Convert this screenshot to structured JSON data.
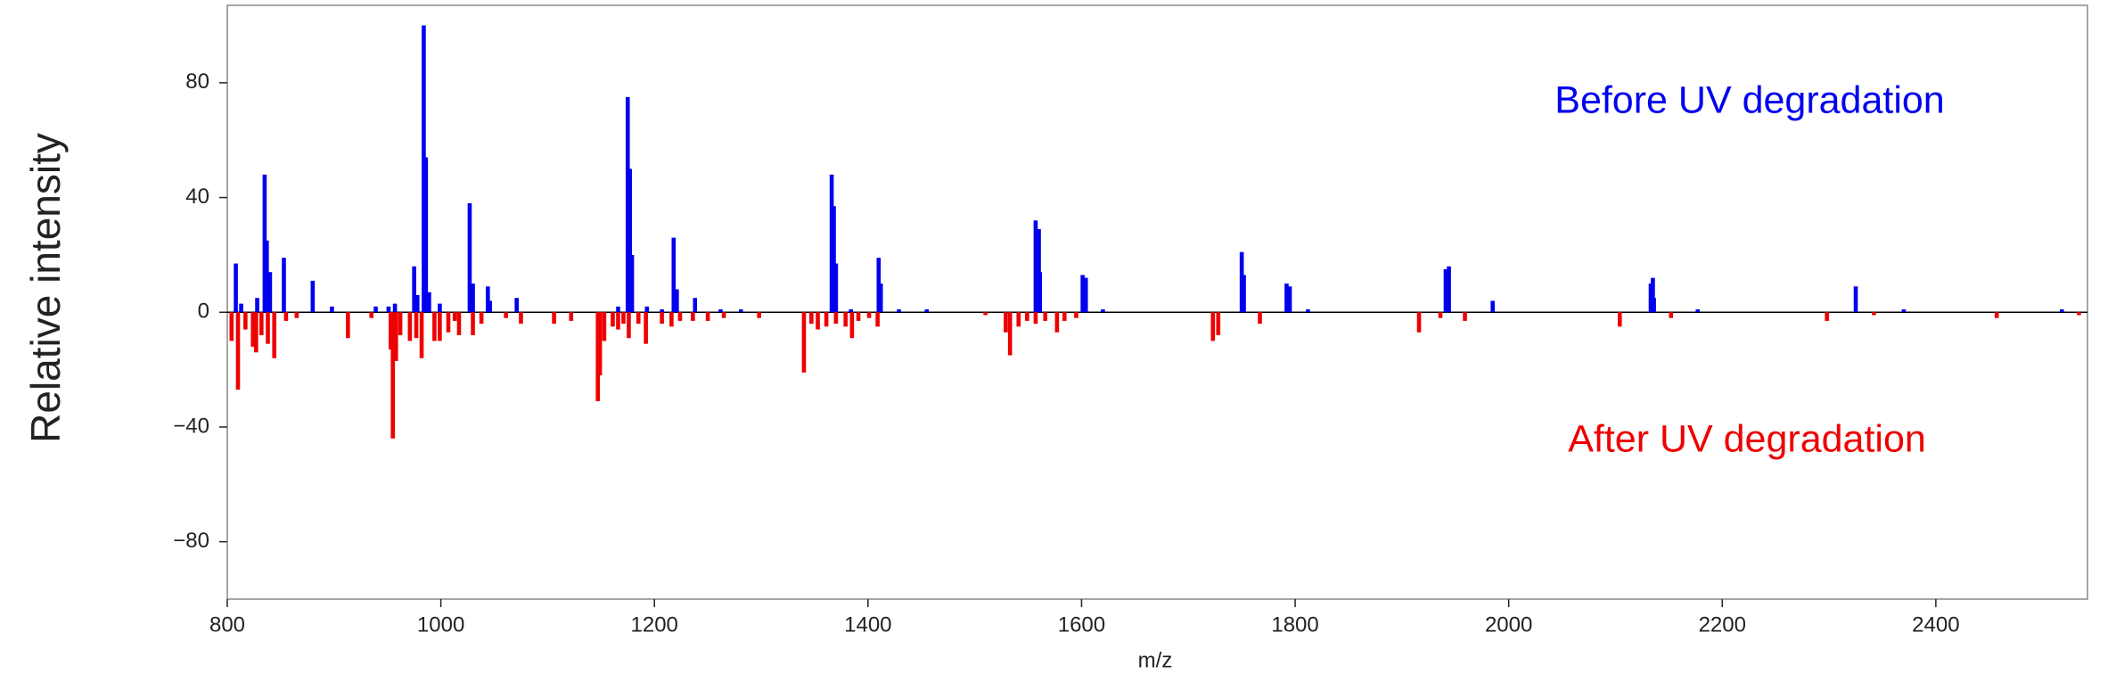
{
  "chart_data": {
    "type": "mirror-stick",
    "xlabel": "m/z",
    "ylabel": "Relative intensity",
    "xlim": [
      800,
      2542
    ],
    "ylim": [
      -100,
      107
    ],
    "xticks": [
      800,
      1000,
      1200,
      1400,
      1600,
      1800,
      2000,
      2200,
      2400
    ],
    "yticks": [
      {
        "value": -80,
        "label": "−80"
      },
      {
        "value": -40,
        "label": "−40"
      },
      0,
      40,
      80
    ],
    "series": [
      {
        "name": "Before UV degradation",
        "color": "#0000ee",
        "x": [
          808,
          813,
          828,
          835,
          837,
          840,
          853,
          880,
          898,
          939,
          951,
          957,
          975,
          978,
          984,
          986,
          989,
          999,
          1027,
          1030,
          1044,
          1046,
          1071,
          1166,
          1175,
          1177,
          1179,
          1193,
          1207,
          1218,
          1221,
          1238,
          1262,
          1281,
          1366,
          1368,
          1370,
          1384,
          1410,
          1412,
          1429,
          1455,
          1557,
          1560,
          1561,
          1601,
          1604,
          1620,
          1750,
          1752,
          1792,
          1795,
          1812,
          1941,
          1944,
          1985,
          2133,
          2135,
          2136,
          2177,
          2325,
          2370,
          2518
        ],
        "values": [
          17,
          3,
          5,
          48,
          25,
          14,
          19,
          11,
          2,
          2,
          2,
          3,
          16,
          6,
          100,
          54,
          7,
          3,
          38,
          10,
          9,
          4,
          5,
          2,
          75,
          50,
          20,
          2,
          1,
          26,
          8,
          5,
          1,
          1,
          48,
          37,
          17,
          1,
          19,
          10,
          1,
          1,
          32,
          29,
          14,
          13,
          12,
          1,
          21,
          13,
          10,
          9,
          1,
          15,
          16,
          4,
          10,
          12,
          5,
          1,
          9,
          1,
          1
        ]
      },
      {
        "name": "After UV degradation",
        "color": "#ee0000",
        "x": [
          804,
          810,
          817,
          824,
          827,
          832,
          838,
          844,
          855,
          865,
          913,
          935,
          953,
          955,
          958,
          962,
          971,
          977,
          982,
          994,
          999,
          1007,
          1013,
          1017,
          1030,
          1038,
          1061,
          1075,
          1106,
          1122,
          1147,
          1149,
          1153,
          1161,
          1166,
          1171,
          1176,
          1185,
          1192,
          1207,
          1216,
          1224,
          1236,
          1250,
          1265,
          1298,
          1340,
          1347,
          1353,
          1361,
          1370,
          1379,
          1385,
          1391,
          1401,
          1409,
          1510,
          1529,
          1533,
          1541,
          1549,
          1557,
          1566,
          1577,
          1584,
          1595,
          1723,
          1728,
          1767,
          1916,
          1936,
          1959,
          2104,
          2152,
          2298,
          2342,
          2457,
          2534
        ],
        "values": [
          -10,
          -27,
          -6,
          -12,
          -14,
          -8,
          -11,
          -16,
          -3,
          -2,
          -9,
          -2,
          -13,
          -44,
          -17,
          -8,
          -10,
          -9,
          -16,
          -10,
          -10,
          -7,
          -3,
          -8,
          -8,
          -4,
          -2,
          -4,
          -4,
          -3,
          -31,
          -22,
          -10,
          -5,
          -6,
          -4,
          -9,
          -4,
          -11,
          -4,
          -5,
          -3,
          -3,
          -3,
          -2,
          -2,
          -21,
          -4,
          -6,
          -5,
          -4,
          -5,
          -9,
          -3,
          -2,
          -5,
          -1,
          -7,
          -15,
          -5,
          -3,
          -4,
          -3,
          -7,
          -3,
          -2,
          -10,
          -8,
          -4,
          -7,
          -2,
          -3,
          -5,
          -2,
          -3,
          -1,
          -2,
          -1
        ]
      }
    ]
  }
}
